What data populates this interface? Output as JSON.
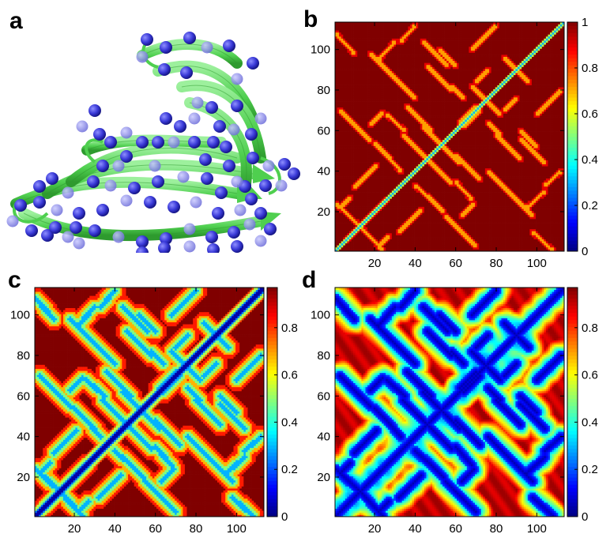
{
  "panels": {
    "a": {
      "letter": "a"
    },
    "b": {
      "letter": "b"
    },
    "c": {
      "letter": "c"
    },
    "d": {
      "letter": "d"
    }
  },
  "colors": {
    "ribbon": "#4fcf4f",
    "ribbon_dark": "#2e9a2e",
    "bead": "#3a3ad8",
    "bead_dark": "#10107a"
  },
  "chart_data": [
    {
      "panel": "b",
      "type": "heatmap",
      "title": "",
      "xlabel": "",
      "ylabel": "",
      "xlim": [
        1,
        113
      ],
      "ylim": [
        1,
        113
      ],
      "xticks": [
        20,
        40,
        60,
        80,
        100
      ],
      "yticks": [
        20,
        40,
        60,
        80,
        100
      ],
      "colorbar": {
        "range": [
          0,
          1
        ],
        "ticks": [
          0,
          0.2,
          0.4,
          0.6,
          0.8,
          1
        ]
      },
      "grid": false,
      "colormap": "jet",
      "pattern": "binary contact map: value 1 (dark red) background, near 0 along the main diagonal with thin yellow contact stripes parallel and anti-parallel to the diagonal"
    },
    {
      "panel": "c",
      "type": "heatmap",
      "title": "",
      "xlabel": "",
      "ylabel": "",
      "xlim": [
        1,
        113
      ],
      "ylim": [
        1,
        113
      ],
      "xticks": [
        20,
        40,
        60,
        80,
        100
      ],
      "yticks": [
        20,
        40,
        60,
        80,
        100
      ],
      "colorbar": {
        "range": [
          0,
          0.97
        ],
        "ticks": [
          0,
          0.2,
          0.4,
          0.6,
          0.8
        ]
      },
      "grid": false,
      "colormap": "jet",
      "pattern": "smoothed contact map: red background, blue main diagonal with cyan-yellow halos along contact stripes"
    },
    {
      "panel": "d",
      "type": "heatmap",
      "title": "",
      "xlabel": "",
      "ylabel": "",
      "xlim": [
        1,
        113
      ],
      "ylim": [
        1,
        113
      ],
      "xticks": [
        20,
        40,
        60,
        80,
        100
      ],
      "yticks": [
        20,
        40,
        60,
        80,
        100
      ],
      "colorbar": {
        "range": [
          0,
          0.97
        ],
        "ticks": [
          0,
          0.2,
          0.4,
          0.6,
          0.8
        ]
      },
      "grid": false,
      "colormap": "jet",
      "pattern": "strongly smoothed distance-like map: blue diagonal and stripes, cyan broad regions, yellow-red islands between stripes"
    }
  ]
}
